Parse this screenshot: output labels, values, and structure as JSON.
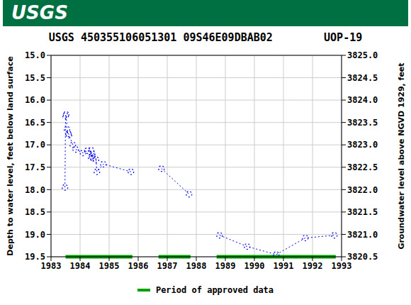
{
  "chart_data": {
    "type": "line",
    "logo": "USGS",
    "title": "USGS 450355106051301 09S46E09DBAB02        UOP-19",
    "y_label": "Depth to water level, feet below land surface",
    "y2_label": "Groundwater level above NGVD 1929, feet",
    "x": [
      1983.48,
      1983.5,
      1983.52,
      1983.55,
      1983.6,
      1983.62,
      1983.75,
      1983.85,
      1984.1,
      1984.25,
      1984.38,
      1984.38,
      1984.42,
      1984.42,
      1984.45,
      1984.55,
      1984.58,
      1984.8,
      1985.75,
      1986.2,
      1986.8,
      1987.75,
      1988.3,
      1988.8,
      1989.75,
      1990.75,
      1991.75,
      1992.75
    ],
    "values": [
      17.95,
      16.35,
      16.32,
      16.65,
      16.75,
      16.78,
      17.0,
      17.1,
      17.18,
      17.13,
      17.12,
      17.28,
      17.2,
      17.25,
      17.3,
      17.33,
      17.6,
      17.43,
      17.6,
      null,
      17.53,
      18.1,
      null,
      19.02,
      19.27,
      19.45,
      19.08,
      19.02
    ],
    "color": "#0000ee",
    "marker": "circle",
    "line_style": "dotted",
    "approved_periods": {
      "label": "Period of approved data",
      "color": "#00a000",
      "ranges": [
        [
          1983.5,
          1985.8
        ],
        [
          1986.7,
          1987.8
        ],
        [
          1988.7,
          1992.8
        ]
      ]
    },
    "legend": "bottom",
    "grid": true,
    "xlim": [
      1983,
      1993
    ],
    "xticks": [
      1983,
      1984,
      1985,
      1986,
      1987,
      1988,
      1989,
      1990,
      1991,
      1992,
      1993
    ],
    "ylim": [
      15.0,
      19.5
    ],
    "yticks": [
      {
        "value": 15.0,
        "label": "15.0"
      },
      {
        "value": 15.5,
        "label": "15.5"
      },
      {
        "value": 16.0,
        "label": "16.0"
      },
      {
        "value": 16.5,
        "label": "16.5"
      },
      {
        "value": 17.0,
        "label": "17.0"
      },
      {
        "value": 17.5,
        "label": "17.5"
      },
      {
        "value": 18.0,
        "label": "18.0"
      },
      {
        "value": 18.5,
        "label": "18.5"
      },
      {
        "value": 19.0,
        "label": "19.0"
      },
      {
        "value": 19.5,
        "label": "19.5"
      }
    ],
    "y2lim": [
      3820.5,
      3825.0
    ],
    "y2ticks": [
      {
        "value": 3820.5,
        "label": "3820.5"
      },
      {
        "value": 3821.0,
        "label": "3821.0"
      },
      {
        "value": 3821.5,
        "label": "3821.5"
      },
      {
        "value": 3822.0,
        "label": "3822.0"
      },
      {
        "value": 3822.5,
        "label": "3822.5"
      },
      {
        "value": 3823.0,
        "label": "3823.0"
      },
      {
        "value": 3823.5,
        "label": "3823.5"
      },
      {
        "value": 3824.0,
        "label": "3824.0"
      },
      {
        "value": 3824.5,
        "label": "3824.5"
      },
      {
        "value": 3825.0,
        "label": "3825.0"
      }
    ]
  }
}
